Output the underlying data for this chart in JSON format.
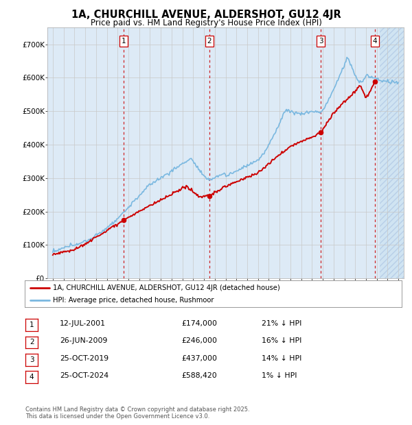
{
  "title": "1A, CHURCHILL AVENUE, ALDERSHOT, GU12 4JR",
  "subtitle": "Price paid vs. HM Land Registry's House Price Index (HPI)",
  "hpi_label": "HPI: Average price, detached house, Rushmoor",
  "property_label": "1A, CHURCHILL AVENUE, ALDERSHOT, GU12 4JR (detached house)",
  "footer": "Contains HM Land Registry data © Crown copyright and database right 2025.\nThis data is licensed under the Open Government Licence v3.0.",
  "transactions": [
    {
      "num": 1,
      "date": "12-JUL-2001",
      "price": 174000,
      "pct": "21%",
      "dir": "↓",
      "year": 2001.54
    },
    {
      "num": 2,
      "date": "26-JUN-2009",
      "price": 246000,
      "pct": "16%",
      "dir": "↓",
      "year": 2009.49
    },
    {
      "num": 3,
      "date": "25-OCT-2019",
      "price": 437000,
      "pct": "14%",
      "dir": "↓",
      "year": 2019.82
    },
    {
      "num": 4,
      "date": "25-OCT-2024",
      "price": 588420,
      "pct": "1%",
      "dir": "↓",
      "year": 2024.82
    }
  ],
  "xlim": [
    1994.5,
    2027.5
  ],
  "ylim": [
    0,
    750000
  ],
  "yticks": [
    0,
    100000,
    200000,
    300000,
    400000,
    500000,
    600000,
    700000
  ],
  "ytick_labels": [
    "£0",
    "£100K",
    "£200K",
    "£300K",
    "£400K",
    "£500K",
    "£600K",
    "£700K"
  ],
  "xticks": [
    1995,
    1996,
    1997,
    1998,
    1999,
    2000,
    2001,
    2002,
    2003,
    2004,
    2005,
    2006,
    2007,
    2008,
    2009,
    2010,
    2011,
    2012,
    2013,
    2014,
    2015,
    2016,
    2017,
    2018,
    2019,
    2020,
    2021,
    2022,
    2023,
    2024,
    2025,
    2026,
    2027
  ],
  "hpi_color": "#7ab8e0",
  "price_color": "#cc0000",
  "dot_color": "#cc0000",
  "grid_color": "#c8c8c8",
  "bg_color": "#ddeaf6",
  "vline_color": "#cc0000",
  "future_start": 2025.3
}
